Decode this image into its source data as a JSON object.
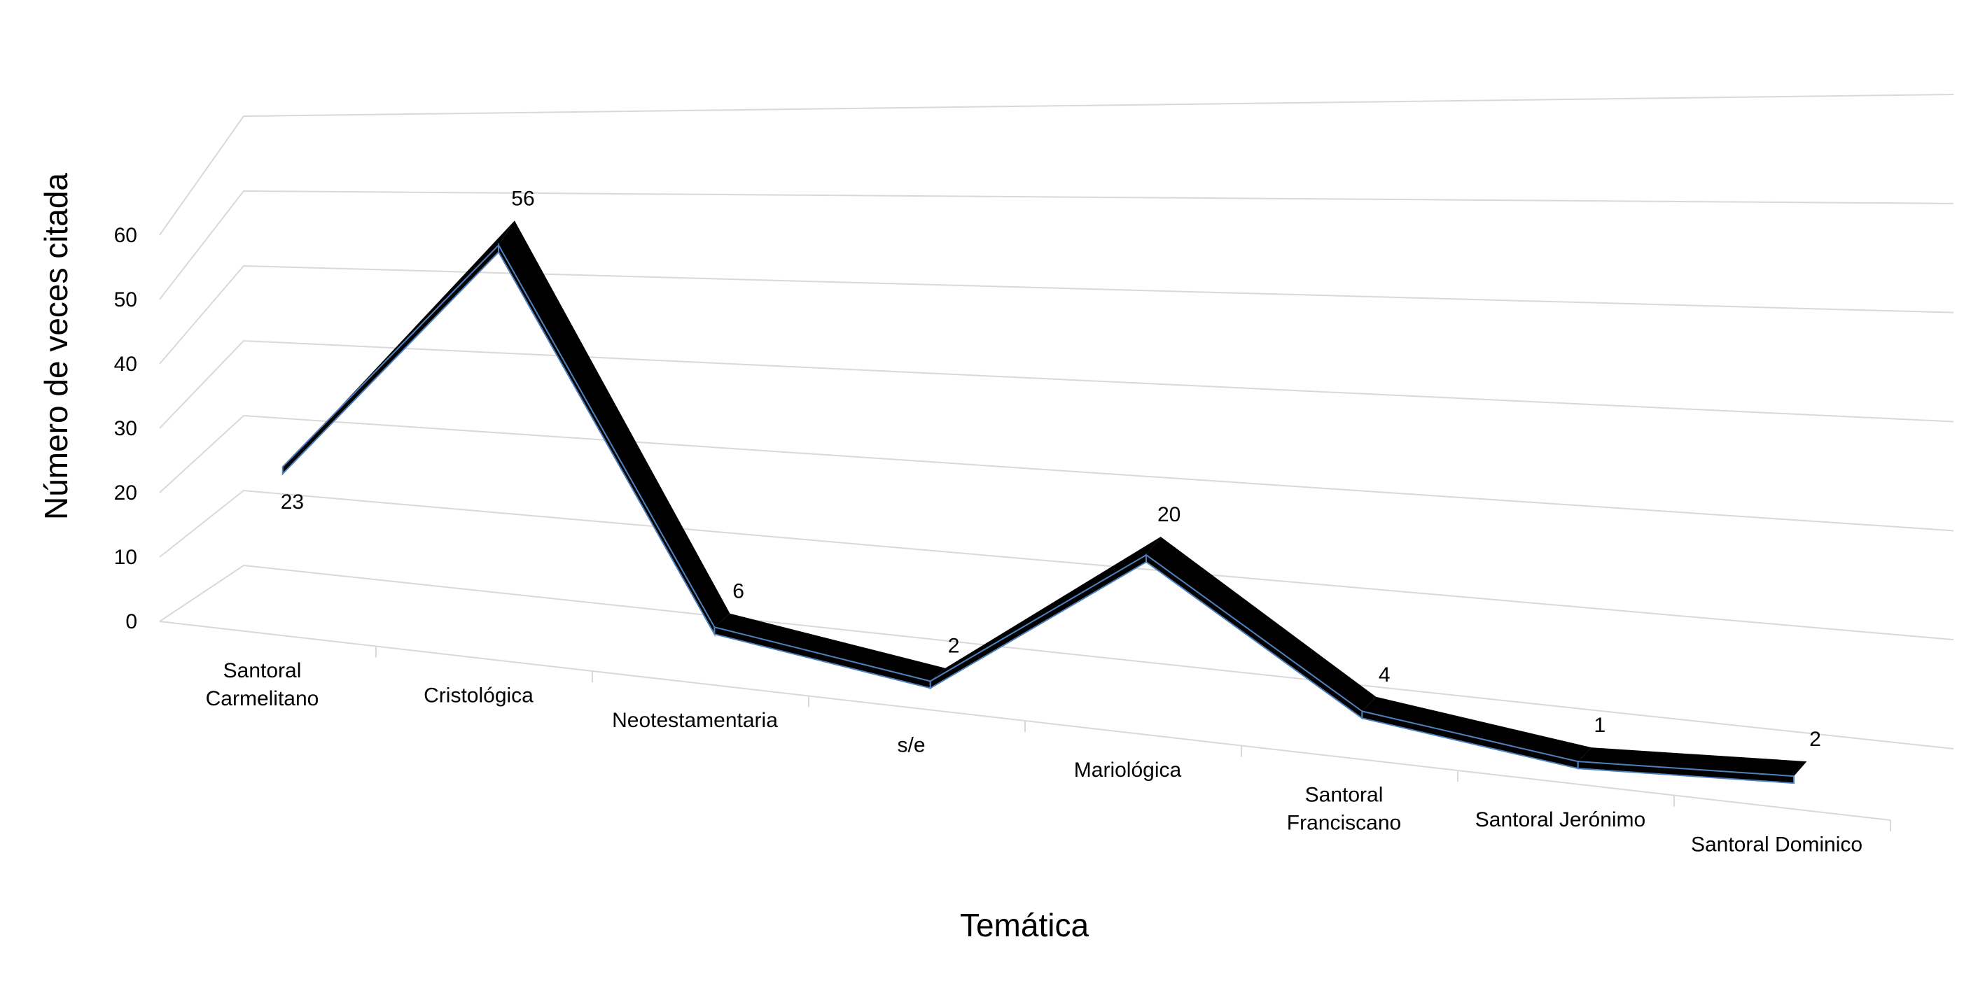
{
  "chart_data": {
    "type": "line",
    "style": "3d-ribbon",
    "categories": [
      [
        "Santoral",
        "Carmelitano"
      ],
      [
        "Cristológica"
      ],
      [
        "Neotestamentaria"
      ],
      [
        "s/e"
      ],
      [
        "Mariológica"
      ],
      [
        "Santoral",
        "Franciscano"
      ],
      [
        "Santoral Jerónimo"
      ],
      [
        "Santoral Dominico"
      ]
    ],
    "series": [
      {
        "values": [
          23,
          56,
          6,
          2,
          20,
          4,
          1,
          2
        ],
        "color": "#000000",
        "edge_color": "#4f81bd"
      }
    ],
    "data_labels": [
      "23",
      "56",
      "6",
      "2",
      "20",
      "4",
      "1",
      "2"
    ],
    "xlabel": "Temática",
    "ylabel": "Número de veces citada",
    "ylim": [
      0,
      60
    ],
    "yticks": [
      "0",
      "10",
      "20",
      "30",
      "40",
      "50",
      "60"
    ],
    "grid": true,
    "legend": "none"
  }
}
